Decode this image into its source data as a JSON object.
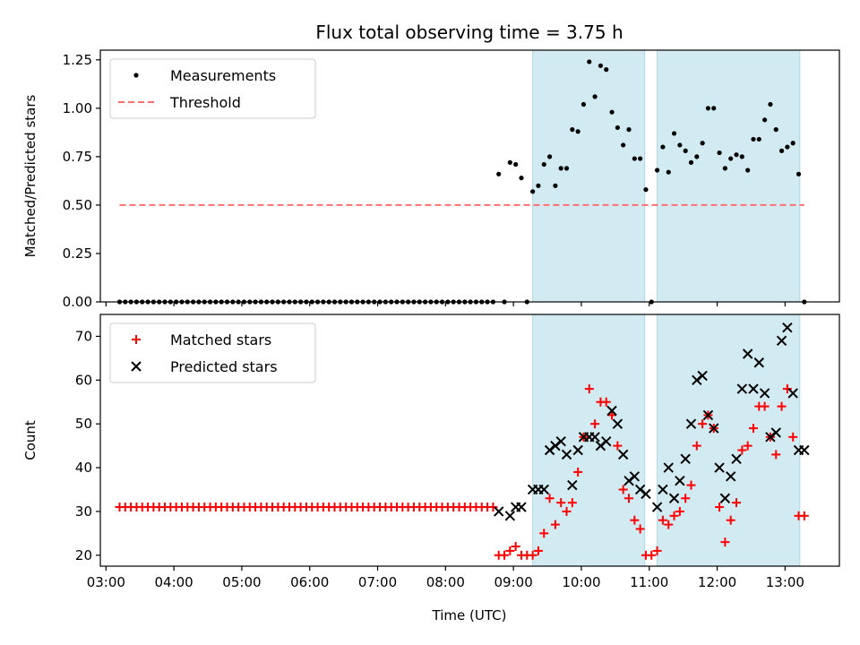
{
  "title": "Flux total observing time = 3.75 h",
  "xlabel": "Time (UTC)",
  "colors": {
    "measurements": "#000000",
    "threshold": "#ff7070",
    "matched": "#ff0000",
    "predicted": "#000000",
    "span": "#add8e6"
  },
  "chart_data": [
    {
      "type": "scatter",
      "ylabel": "Matched/Predicted stars",
      "ylim": [
        0,
        1.3
      ],
      "yticks": [
        0.0,
        0.25,
        0.5,
        0.75,
        1.0,
        1.25
      ],
      "ytick_labels": [
        "0.00",
        "0.25",
        "0.50",
        "0.75",
        "1.00",
        "1.25"
      ],
      "xlim": [
        "02:55",
        "13:48"
      ],
      "xticks": [
        "03:00",
        "04:00",
        "05:00",
        "06:00",
        "07:00",
        "08:00",
        "09:00",
        "10:00",
        "11:00",
        "12:00",
        "13:00"
      ],
      "legend": {
        "position": "top-left",
        "entries": [
          "Measurements",
          "Threshold"
        ]
      },
      "spans": [
        [
          "09:17",
          "10:56"
        ],
        [
          "11:07",
          "13:13"
        ]
      ],
      "threshold": {
        "name": "Threshold",
        "x": [
          "03:12",
          "13:17"
        ],
        "y": 0.5
      },
      "series": [
        {
          "name": "Measurements",
          "x": [
            "03:12",
            "03:17",
            "03:22",
            "03:27",
            "03:32",
            "03:37",
            "03:42",
            "03:47",
            "03:52",
            "03:57",
            "04:02",
            "04:07",
            "04:12",
            "04:17",
            "04:22",
            "04:27",
            "04:32",
            "04:37",
            "04:42",
            "04:47",
            "04:52",
            "04:57",
            "05:02",
            "05:07",
            "05:12",
            "05:17",
            "05:22",
            "05:27",
            "05:32",
            "05:37",
            "05:42",
            "05:47",
            "05:52",
            "05:57",
            "06:02",
            "06:07",
            "06:12",
            "06:17",
            "06:22",
            "06:27",
            "06:32",
            "06:37",
            "06:42",
            "06:47",
            "06:52",
            "06:57",
            "07:02",
            "07:07",
            "07:12",
            "07:17",
            "07:22",
            "07:27",
            "07:32",
            "07:37",
            "07:42",
            "07:47",
            "07:52",
            "07:57",
            "08:02",
            "08:07",
            "08:12",
            "08:17",
            "08:22",
            "08:27",
            "08:32",
            "08:37",
            "08:42",
            "08:47",
            "08:52",
            "08:57",
            "09:02",
            "09:07",
            "09:12",
            "09:17",
            "09:22",
            "09:27",
            "09:32",
            "09:37",
            "09:42",
            "09:47",
            "09:52",
            "09:57",
            "10:02",
            "10:07",
            "10:12",
            "10:17",
            "10:22",
            "10:27",
            "10:32",
            "10:37",
            "10:42",
            "10:47",
            "10:52",
            "10:57",
            "11:02",
            "11:07",
            "11:12",
            "11:17",
            "11:22",
            "11:27",
            "11:32",
            "11:37",
            "11:42",
            "11:47",
            "11:52",
            "11:57",
            "12:02",
            "12:07",
            "12:12",
            "12:17",
            "12:22",
            "12:27",
            "12:32",
            "12:37",
            "12:42",
            "12:47",
            "12:52",
            "12:57",
            "13:02",
            "13:07",
            "13:12",
            "13:17"
          ],
          "y": [
            0,
            0,
            0,
            0,
            0,
            0,
            0,
            0,
            0,
            0,
            0,
            0,
            0,
            0,
            0,
            0,
            0,
            0,
            0,
            0,
            0,
            0,
            0,
            0,
            0,
            0,
            0,
            0,
            0,
            0,
            0,
            0,
            0,
            0,
            0,
            0,
            0,
            0,
            0,
            0,
            0,
            0,
            0,
            0,
            0,
            0,
            0,
            0,
            0,
            0,
            0,
            0,
            0,
            0,
            0,
            0,
            0,
            0,
            0,
            0,
            0,
            0,
            0,
            0,
            0,
            0,
            0,
            0.66,
            0,
            0.72,
            0.71,
            0.64,
            0,
            0.57,
            0.6,
            0.71,
            0.75,
            0.6,
            0.69,
            0.69,
            0.89,
            0.88,
            1.02,
            1.24,
            1.06,
            1.22,
            1.2,
            0.98,
            0.9,
            0.81,
            0.89,
            0.74,
            0.74,
            0.58,
            0,
            0.68,
            0.8,
            0.67,
            0.87,
            0.81,
            0.78,
            0.72,
            0.75,
            0.82,
            1.0,
            1.0,
            0.77,
            0.69,
            0.74,
            0.76,
            0.75,
            0.68,
            0.84,
            0.84,
            0.94,
            1.02,
            0.89,
            0.78,
            0.8,
            0.82,
            0.66,
            0
          ]
        }
      ]
    },
    {
      "type": "scatter",
      "ylabel": "Count",
      "ylim": [
        17.5,
        75
      ],
      "yticks": [
        20,
        30,
        40,
        50,
        60,
        70
      ],
      "ytick_labels": [
        "20",
        "30",
        "40",
        "50",
        "60",
        "70"
      ],
      "xlim": [
        "02:55",
        "13:48"
      ],
      "xticks": [
        "03:00",
        "04:00",
        "05:00",
        "06:00",
        "07:00",
        "08:00",
        "09:00",
        "10:00",
        "11:00",
        "12:00",
        "13:00"
      ],
      "xtick_labels": [
        "03:00",
        "04:00",
        "05:00",
        "06:00",
        "07:00",
        "08:00",
        "09:00",
        "10:00",
        "11:00",
        "12:00",
        "13:00"
      ],
      "legend": {
        "position": "top-left",
        "entries": [
          "Matched stars",
          "Predicted stars"
        ]
      },
      "spans": [
        [
          "09:17",
          "10:56"
        ],
        [
          "11:07",
          "13:13"
        ]
      ],
      "series": [
        {
          "name": "Matched stars",
          "marker": "plus",
          "x": [
            "03:12",
            "03:17",
            "03:22",
            "03:27",
            "03:32",
            "03:37",
            "03:42",
            "03:47",
            "03:52",
            "03:57",
            "04:02",
            "04:07",
            "04:12",
            "04:17",
            "04:22",
            "04:27",
            "04:32",
            "04:37",
            "04:42",
            "04:47",
            "04:52",
            "04:57",
            "05:02",
            "05:07",
            "05:12",
            "05:17",
            "05:22",
            "05:27",
            "05:32",
            "05:37",
            "05:42",
            "05:47",
            "05:52",
            "05:57",
            "06:02",
            "06:07",
            "06:12",
            "06:17",
            "06:22",
            "06:27",
            "06:32",
            "06:37",
            "06:42",
            "06:47",
            "06:52",
            "06:57",
            "07:02",
            "07:07",
            "07:12",
            "07:17",
            "07:22",
            "07:27",
            "07:32",
            "07:37",
            "07:42",
            "07:47",
            "07:52",
            "07:57",
            "08:02",
            "08:07",
            "08:12",
            "08:17",
            "08:22",
            "08:27",
            "08:32",
            "08:37",
            "08:42",
            "08:47",
            "08:52",
            "08:57",
            "09:02",
            "09:07",
            "09:12",
            "09:17",
            "09:22",
            "09:27",
            "09:32",
            "09:37",
            "09:42",
            "09:47",
            "09:52",
            "09:57",
            "10:02",
            "10:07",
            "10:12",
            "10:17",
            "10:22",
            "10:27",
            "10:32",
            "10:37",
            "10:42",
            "10:47",
            "10:52",
            "10:57",
            "11:02",
            "11:07",
            "11:12",
            "11:17",
            "11:22",
            "11:27",
            "11:32",
            "11:37",
            "11:42",
            "11:47",
            "11:52",
            "11:57",
            "12:02",
            "12:07",
            "12:12",
            "12:17",
            "12:22",
            "12:27",
            "12:32",
            "12:37",
            "12:42",
            "12:47",
            "12:52",
            "12:57",
            "13:02",
            "13:07",
            "13:12",
            "13:17"
          ],
          "y": [
            31,
            31,
            31,
            31,
            31,
            31,
            31,
            31,
            31,
            31,
            31,
            31,
            31,
            31,
            31,
            31,
            31,
            31,
            31,
            31,
            31,
            31,
            31,
            31,
            31,
            31,
            31,
            31,
            31,
            31,
            31,
            31,
            31,
            31,
            31,
            31,
            31,
            31,
            31,
            31,
            31,
            31,
            31,
            31,
            31,
            31,
            31,
            31,
            31,
            31,
            31,
            31,
            31,
            31,
            31,
            31,
            31,
            31,
            31,
            31,
            31,
            31,
            31,
            31,
            31,
            31,
            31,
            20,
            20,
            21,
            22,
            20,
            20,
            20,
            21,
            25,
            33,
            27,
            32,
            30,
            32,
            39,
            47,
            58,
            50,
            55,
            55,
            52,
            45,
            35,
            33,
            28,
            26,
            20,
            20,
            21,
            28,
            27,
            29,
            30,
            33,
            36,
            45,
            50,
            52,
            49,
            31,
            23,
            28,
            32,
            44,
            45,
            49,
            54,
            54,
            47,
            43,
            54,
            58,
            47,
            29,
            29
          ]
        },
        {
          "name": "Predicted stars",
          "marker": "x",
          "x": [
            "08:47",
            "08:57",
            "09:02",
            "09:07",
            "09:17",
            "09:22",
            "09:27",
            "09:32",
            "09:37",
            "09:42",
            "09:47",
            "09:52",
            "09:57",
            "10:02",
            "10:07",
            "10:12",
            "10:17",
            "10:22",
            "10:27",
            "10:32",
            "10:37",
            "10:42",
            "10:47",
            "10:52",
            "10:57",
            "11:07",
            "11:12",
            "11:17",
            "11:22",
            "11:27",
            "11:32",
            "11:37",
            "11:42",
            "11:47",
            "11:52",
            "11:57",
            "12:02",
            "12:07",
            "12:12",
            "12:17",
            "12:22",
            "12:27",
            "12:32",
            "12:37",
            "12:42",
            "12:47",
            "12:52",
            "12:57",
            "13:02",
            "13:07",
            "13:12",
            "13:17"
          ],
          "y": [
            30,
            29,
            31,
            31,
            35,
            35,
            35,
            44,
            45,
            46,
            43,
            36,
            44,
            47,
            47,
            47,
            45,
            46,
            53,
            50,
            43,
            37,
            38,
            35,
            34,
            31,
            35,
            40,
            33,
            37,
            42,
            50,
            60,
            61,
            52,
            49,
            40,
            33,
            38,
            42,
            58,
            66,
            58,
            64,
            57,
            47,
            48,
            69,
            72,
            57,
            44,
            44
          ]
        }
      ]
    }
  ]
}
